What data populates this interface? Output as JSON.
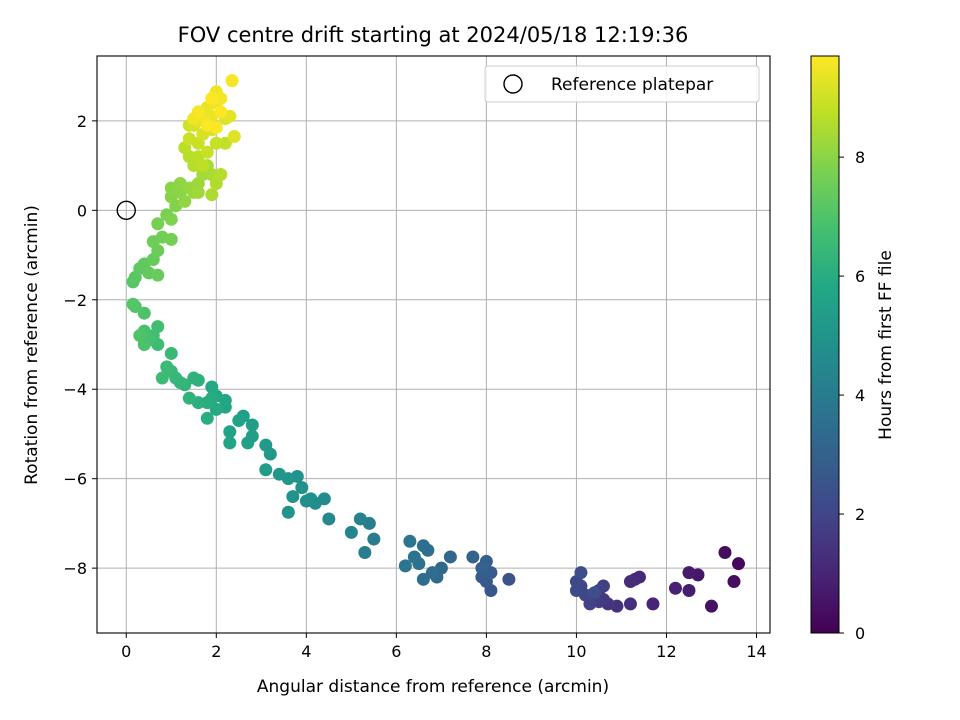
{
  "chart_data": {
    "type": "scatter",
    "title": "FOV centre drift starting at 2024/05/18 12:19:36",
    "xlabel": "Angular distance from reference (arcmin)",
    "ylabel": "Rotation from reference (arcmin)",
    "colorbar_label": "Hours from first FF file",
    "xlim": [
      -0.65,
      14.3
    ],
    "ylim": [
      -9.45,
      3.45
    ],
    "clim": [
      0,
      9.7
    ],
    "xticks": [
      0,
      2,
      4,
      6,
      8,
      10,
      12,
      14
    ],
    "yticks": [
      -8,
      -6,
      -4,
      -2,
      0,
      2
    ],
    "cticks": [
      0,
      2,
      4,
      6,
      8
    ],
    "grid": true,
    "colormap": "viridis",
    "legend": {
      "position": "top-right",
      "entries": [
        "Reference platepar"
      ]
    },
    "reference_point": {
      "x": 0,
      "y": 0
    },
    "points": [
      [
        13.6,
        -7.9,
        0.2
      ],
      [
        13.3,
        -7.65,
        0.3
      ],
      [
        13.5,
        -8.3,
        0.35
      ],
      [
        13.0,
        -8.85,
        0.45
      ],
      [
        12.7,
        -8.15,
        0.6
      ],
      [
        12.5,
        -8.1,
        0.7
      ],
      [
        12.5,
        -8.5,
        0.8
      ],
      [
        12.2,
        -8.45,
        0.9
      ],
      [
        11.7,
        -8.8,
        1.0
      ],
      [
        11.4,
        -8.2,
        1.1
      ],
      [
        11.3,
        -8.25,
        1.15
      ],
      [
        11.2,
        -8.3,
        1.2
      ],
      [
        11.2,
        -8.8,
        1.3
      ],
      [
        10.9,
        -8.85,
        1.4
      ],
      [
        10.7,
        -8.8,
        1.5
      ],
      [
        10.6,
        -8.7,
        1.6
      ],
      [
        10.5,
        -8.75,
        1.7
      ],
      [
        10.6,
        -8.4,
        1.8
      ],
      [
        10.5,
        -8.5,
        1.85
      ],
      [
        10.3,
        -8.8,
        1.9
      ],
      [
        10.2,
        -8.6,
        2.0
      ],
      [
        10.1,
        -8.4,
        2.05
      ],
      [
        10.0,
        -8.3,
        2.1
      ],
      [
        10.0,
        -8.5,
        2.2
      ],
      [
        10.1,
        -8.1,
        2.3
      ],
      [
        10.4,
        -8.55,
        2.35
      ],
      [
        8.5,
        -8.25,
        2.5
      ],
      [
        8.1,
        -8.5,
        2.6
      ],
      [
        8.0,
        -8.3,
        2.7
      ],
      [
        7.9,
        -8.2,
        2.8
      ],
      [
        8.1,
        -8.1,
        2.85
      ],
      [
        8.0,
        -7.85,
        2.9
      ],
      [
        7.9,
        -8.0,
        3.0
      ],
      [
        7.7,
        -7.75,
        3.1
      ],
      [
        7.2,
        -7.75,
        3.2
      ],
      [
        7.0,
        -8.0,
        3.3
      ],
      [
        6.9,
        -8.2,
        3.35
      ],
      [
        6.8,
        -8.1,
        3.4
      ],
      [
        6.6,
        -8.25,
        3.45
      ],
      [
        6.7,
        -7.6,
        3.5
      ],
      [
        6.6,
        -7.5,
        3.55
      ],
      [
        6.5,
        -7.9,
        3.6
      ],
      [
        6.4,
        -7.75,
        3.7
      ],
      [
        6.2,
        -7.95,
        3.75
      ],
      [
        6.3,
        -7.4,
        3.8
      ],
      [
        5.5,
        -7.35,
        4.0
      ],
      [
        5.3,
        -7.65,
        4.1
      ],
      [
        5.4,
        -7.0,
        4.2
      ],
      [
        5.2,
        -6.9,
        4.3
      ],
      [
        5.0,
        -7.2,
        4.4
      ],
      [
        4.5,
        -6.9,
        4.5
      ],
      [
        4.4,
        -6.45,
        4.6
      ],
      [
        4.2,
        -6.55,
        4.7
      ],
      [
        4.1,
        -6.45,
        4.75
      ],
      [
        4.0,
        -6.5,
        4.8
      ],
      [
        3.9,
        -6.2,
        4.85
      ],
      [
        3.8,
        -5.95,
        4.9
      ],
      [
        3.7,
        -6.4,
        4.95
      ],
      [
        3.6,
        -6.75,
        5.0
      ],
      [
        3.6,
        -6.0,
        5.05
      ],
      [
        3.4,
        -5.9,
        5.1
      ],
      [
        3.2,
        -5.45,
        5.2
      ],
      [
        3.1,
        -5.25,
        5.25
      ],
      [
        3.1,
        -5.8,
        5.3
      ],
      [
        2.8,
        -5.05,
        5.35
      ],
      [
        2.8,
        -4.8,
        5.4
      ],
      [
        2.7,
        -5.2,
        5.45
      ],
      [
        2.6,
        -4.6,
        5.5
      ],
      [
        2.5,
        -4.7,
        5.55
      ],
      [
        2.3,
        -4.95,
        5.6
      ],
      [
        2.3,
        -5.2,
        5.65
      ],
      [
        2.2,
        -4.4,
        5.7
      ],
      [
        2.2,
        -4.25,
        5.75
      ],
      [
        2.0,
        -4.15,
        5.8
      ],
      [
        1.9,
        -3.95,
        5.85
      ],
      [
        2.0,
        -4.45,
        5.9
      ],
      [
        1.9,
        -4.2,
        5.95
      ],
      [
        1.8,
        -4.3,
        6.0
      ],
      [
        1.8,
        -4.65,
        6.05
      ],
      [
        1.6,
        -4.3,
        6.1
      ],
      [
        1.6,
        -3.8,
        6.15
      ],
      [
        1.5,
        -3.75,
        6.2
      ],
      [
        1.4,
        -4.2,
        6.25
      ],
      [
        1.3,
        -3.9,
        6.3
      ],
      [
        1.2,
        -3.85,
        6.35
      ],
      [
        1.1,
        -3.75,
        6.4
      ],
      [
        1.0,
        -3.6,
        6.45
      ],
      [
        1.0,
        -3.2,
        6.5
      ],
      [
        0.9,
        -3.5,
        6.55
      ],
      [
        0.8,
        -3.75,
        6.6
      ],
      [
        0.7,
        -3.0,
        6.65
      ],
      [
        0.7,
        -2.6,
        6.7
      ],
      [
        0.6,
        -2.8,
        6.75
      ],
      [
        0.5,
        -2.9,
        6.8
      ],
      [
        0.4,
        -2.7,
        6.85
      ],
      [
        0.4,
        -3.0,
        6.9
      ],
      [
        0.4,
        -2.3,
        6.95
      ],
      [
        0.3,
        -2.8,
        7.0
      ],
      [
        0.2,
        -2.15,
        7.05
      ],
      [
        0.15,
        -2.1,
        7.1
      ],
      [
        0.15,
        -1.6,
        7.15
      ],
      [
        0.2,
        -1.5,
        7.2
      ],
      [
        0.3,
        -1.3,
        7.25
      ],
      [
        0.4,
        -1.2,
        7.3
      ],
      [
        0.5,
        -1.4,
        7.35
      ],
      [
        0.6,
        -1.1,
        7.4
      ],
      [
        0.7,
        -1.45,
        7.45
      ],
      [
        0.7,
        -0.9,
        7.5
      ],
      [
        0.6,
        -0.7,
        7.55
      ],
      [
        0.8,
        -0.6,
        7.6
      ],
      [
        1.0,
        -0.65,
        7.65
      ],
      [
        0.7,
        -0.3,
        7.7
      ],
      [
        0.9,
        -0.1,
        7.75
      ],
      [
        1.0,
        -0.2,
        7.8
      ],
      [
        1.1,
        0.1,
        7.85
      ],
      [
        1.0,
        0.3,
        7.9
      ],
      [
        1.0,
        0.5,
        7.95
      ],
      [
        1.2,
        0.4,
        8.0
      ],
      [
        1.2,
        0.6,
        8.05
      ],
      [
        1.3,
        0.2,
        8.1
      ],
      [
        1.4,
        0.5,
        8.15
      ],
      [
        1.5,
        0.4,
        8.2
      ],
      [
        1.6,
        0.6,
        8.25
      ],
      [
        1.6,
        0.4,
        8.3
      ],
      [
        1.7,
        0.8,
        8.35
      ],
      [
        1.8,
        1.0,
        8.4
      ],
      [
        1.9,
        0.8,
        8.45
      ],
      [
        1.9,
        0.35,
        8.5
      ],
      [
        2.0,
        0.6,
        8.55
      ],
      [
        2.1,
        0.8,
        8.6
      ],
      [
        1.5,
        1.0,
        8.6
      ],
      [
        1.4,
        1.2,
        8.65
      ],
      [
        1.3,
        1.4,
        8.7
      ],
      [
        1.6,
        1.2,
        8.7
      ],
      [
        1.7,
        1.0,
        8.75
      ],
      [
        2.2,
        1.5,
        8.8
      ],
      [
        2.0,
        1.5,
        8.85
      ],
      [
        1.8,
        1.3,
        8.9
      ],
      [
        1.6,
        1.5,
        8.9
      ],
      [
        1.4,
        1.6,
        8.95
      ],
      [
        1.4,
        1.9,
        9.0
      ],
      [
        1.5,
        1.9,
        9.05
      ],
      [
        1.7,
        1.7,
        9.1
      ],
      [
        1.9,
        1.8,
        9.15
      ],
      [
        2.2,
        2.05,
        9.2
      ],
      [
        2.4,
        1.65,
        9.25
      ],
      [
        2.3,
        2.1,
        9.3
      ],
      [
        1.6,
        2.0,
        9.3
      ],
      [
        1.7,
        2.2,
        9.35
      ],
      [
        1.8,
        2.3,
        9.4
      ],
      [
        1.9,
        2.1,
        9.4
      ],
      [
        2.0,
        2.4,
        9.45
      ],
      [
        1.7,
        2.1,
        9.45
      ],
      [
        1.5,
        2.05,
        9.5
      ],
      [
        2.0,
        2.65,
        9.5
      ],
      [
        2.1,
        2.5,
        9.55
      ],
      [
        2.35,
        2.9,
        9.6
      ],
      [
        1.6,
        2.2,
        9.6
      ],
      [
        1.8,
        1.9,
        9.65
      ],
      [
        2.0,
        1.85,
        9.65
      ],
      [
        2.1,
        2.2,
        9.7
      ],
      [
        1.9,
        2.5,
        9.7
      ]
    ]
  }
}
